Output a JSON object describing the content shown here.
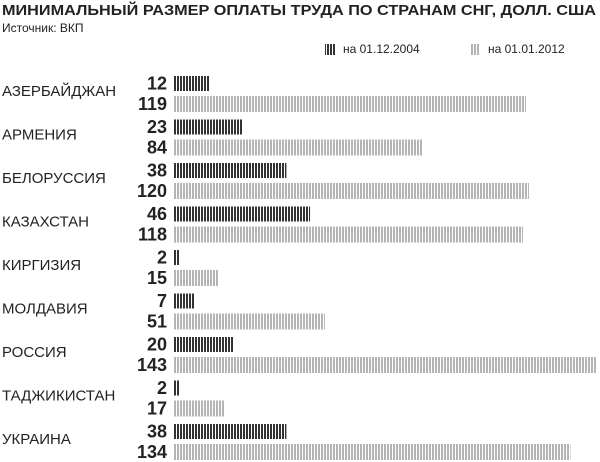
{
  "chart_data": {
    "type": "bar",
    "orientation": "horizontal",
    "title": "МИНИМАЛЬНЫЙ РАЗМЕР ОПЛАТЫ ТРУДА ПО СТРАНАМ СНГ, ДОЛЛ. США",
    "subtitle": "Источник: ВКП",
    "categories": [
      "АЗЕРБАЙДЖАН",
      "АРМЕНИЯ",
      "БЕЛОРУССИЯ",
      "КАЗАХСТАН",
      "КИРГИЗИЯ",
      "МОЛДАВИЯ",
      "РОССИЯ",
      "ТАДЖИКИСТАН",
      "УКРАИНА"
    ],
    "series": [
      {
        "name": "на 01.12.2004",
        "color": "#333333",
        "values": [
          12,
          23,
          38,
          46,
          2,
          7,
          20,
          2,
          38
        ]
      },
      {
        "name": "на 01.01.2012",
        "color": "#b4b4b4",
        "values": [
          119,
          84,
          120,
          118,
          15,
          51,
          143,
          17,
          134
        ]
      }
    ],
    "legend": "top-right"
  }
}
